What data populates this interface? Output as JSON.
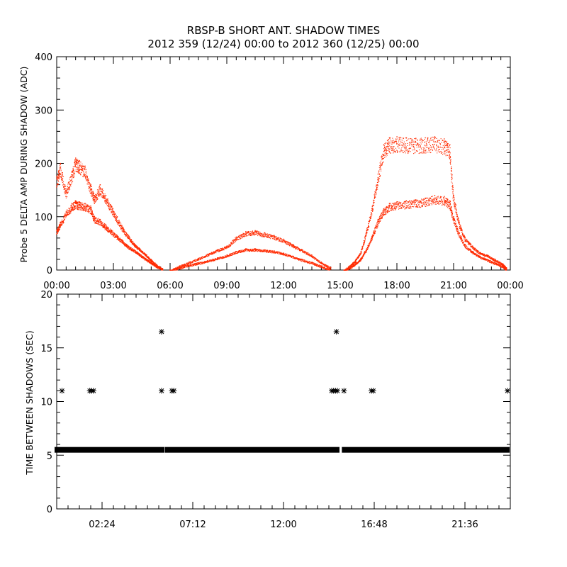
{
  "chart_data": [
    {
      "type": "scatter",
      "title": "RBSP-B SHORT ANT. SHADOW TIMES",
      "subtitle": "2012 359 (12/24) 00:00 to 2012 360 (12/25) 00:00",
      "xlabel": "",
      "ylabel": "Probe 5 DELTA AMP DURING SHADOW (ADC)",
      "x_unit": "hours",
      "xlim": [
        0,
        24
      ],
      "ylim": [
        0,
        400
      ],
      "x_tick_values": [
        0,
        3,
        6,
        9,
        12,
        15,
        18,
        21,
        24
      ],
      "x_tick_labels": [
        "00:00",
        "03:00",
        "06:00",
        "09:00",
        "12:00",
        "15:00",
        "18:00",
        "21:00",
        "00:00"
      ],
      "y_ticks": [
        0,
        100,
        200,
        300,
        400
      ],
      "grid": false,
      "color": "#ff2a00",
      "series": [
        {
          "x": [
            0.0,
            0.2,
            0.5,
            0.8,
            1.0,
            1.2,
            1.5,
            1.8,
            2.0,
            2.3,
            2.6,
            2.9,
            3.2,
            3.5,
            3.8,
            4.1,
            4.4,
            4.7,
            5.0,
            5.3,
            5.6
          ],
          "values": [
            175,
            200,
            150,
            185,
            210,
            205,
            195,
            160,
            140,
            160,
            140,
            120,
            100,
            80,
            65,
            50,
            40,
            30,
            20,
            10,
            3
          ]
        },
        {
          "x": [
            0.0,
            0.2,
            0.5,
            0.8,
            1.0,
            1.2,
            1.5,
            1.8,
            2.0,
            2.3,
            2.6,
            2.9,
            3.2,
            3.5,
            3.8,
            4.1,
            4.4,
            4.7,
            5.0,
            5.3,
            5.6
          ],
          "values": [
            75,
            90,
            110,
            125,
            130,
            128,
            125,
            120,
            100,
            95,
            85,
            75,
            65,
            55,
            45,
            38,
            30,
            22,
            15,
            8,
            2
          ]
        },
        {
          "x": [
            6.0,
            6.5,
            7.0,
            7.5,
            8.0,
            8.5,
            9.0,
            9.5,
            10.0,
            10.5,
            11.0,
            11.5,
            12.0,
            12.5,
            13.0,
            13.5,
            14.0,
            14.5
          ],
          "values": [
            0,
            8,
            15,
            22,
            30,
            38,
            45,
            62,
            72,
            74,
            70,
            65,
            58,
            48,
            38,
            28,
            15,
            5
          ]
        },
        {
          "x": [
            6.0,
            6.5,
            7.0,
            7.5,
            8.0,
            8.5,
            9.0,
            9.5,
            10.0,
            10.5,
            11.0,
            11.5,
            12.0,
            12.5,
            13.0,
            13.5,
            14.0,
            14.5
          ],
          "values": [
            0,
            5,
            10,
            14,
            18,
            23,
            28,
            35,
            40,
            40,
            38,
            36,
            32,
            26,
            20,
            15,
            8,
            2
          ]
        },
        {
          "x": [
            15.2,
            15.5,
            15.8,
            16.1,
            16.4,
            16.7,
            17.0,
            17.3,
            17.6,
            18.0,
            18.5,
            19.0,
            19.5,
            20.0,
            20.5,
            20.8,
            21.0,
            21.3,
            21.6,
            22.0,
            22.4,
            22.8,
            23.2,
            23.6,
            23.8
          ],
          "values": [
            0,
            8,
            18,
            35,
            75,
            120,
            180,
            235,
            248,
            250,
            248,
            247,
            248,
            250,
            246,
            235,
            140,
            90,
            62,
            45,
            33,
            28,
            20,
            12,
            4
          ]
        },
        {
          "x": [
            15.2,
            15.5,
            15.8,
            16.1,
            16.4,
            16.7,
            17.0,
            17.3,
            17.6,
            18.0,
            18.5,
            19.0,
            19.5,
            20.0,
            20.5,
            20.8,
            21.0,
            21.3,
            21.6,
            22.0,
            22.4,
            22.8,
            23.2,
            23.6,
            23.8
          ],
          "values": [
            0,
            5,
            12,
            22,
            40,
            65,
            95,
            115,
            125,
            128,
            130,
            132,
            135,
            140,
            138,
            130,
            100,
            70,
            48,
            35,
            26,
            20,
            14,
            8,
            2
          ]
        }
      ]
    },
    {
      "type": "scatter",
      "title": "",
      "xlabel": "",
      "ylabel": "TIME BETWEEN SHADOWS (SEC)",
      "x_unit": "hours",
      "xlim": [
        0,
        24
      ],
      "ylim": [
        0,
        20
      ],
      "x_tick_values": [
        2.4,
        7.2,
        12.0,
        16.8,
        21.6
      ],
      "x_tick_labels": [
        "02:24",
        "07:12",
        "12:00",
        "16:48",
        "21:36"
      ],
      "y_ticks": [
        0,
        5,
        10,
        15,
        20
      ],
      "grid": false,
      "color": "#000000",
      "marker": "*",
      "baseline": {
        "value": 5.5,
        "segments": [
          [
            0.0,
            5.6
          ],
          [
            5.85,
            14.85
          ],
          [
            15.2,
            23.85
          ]
        ]
      },
      "series": [
        {
          "x": [
            0.28,
            1.75,
            1.85,
            1.95,
            5.55,
            6.1,
            6.2,
            14.55,
            14.65,
            14.75,
            14.85,
            15.2,
            16.65,
            16.75,
            23.85,
            5.55,
            14.8
          ],
          "values": [
            11,
            11,
            11,
            11,
            11,
            11,
            11,
            11,
            11,
            11,
            11,
            11,
            11,
            11,
            11,
            16.5,
            16.5
          ]
        }
      ]
    }
  ]
}
